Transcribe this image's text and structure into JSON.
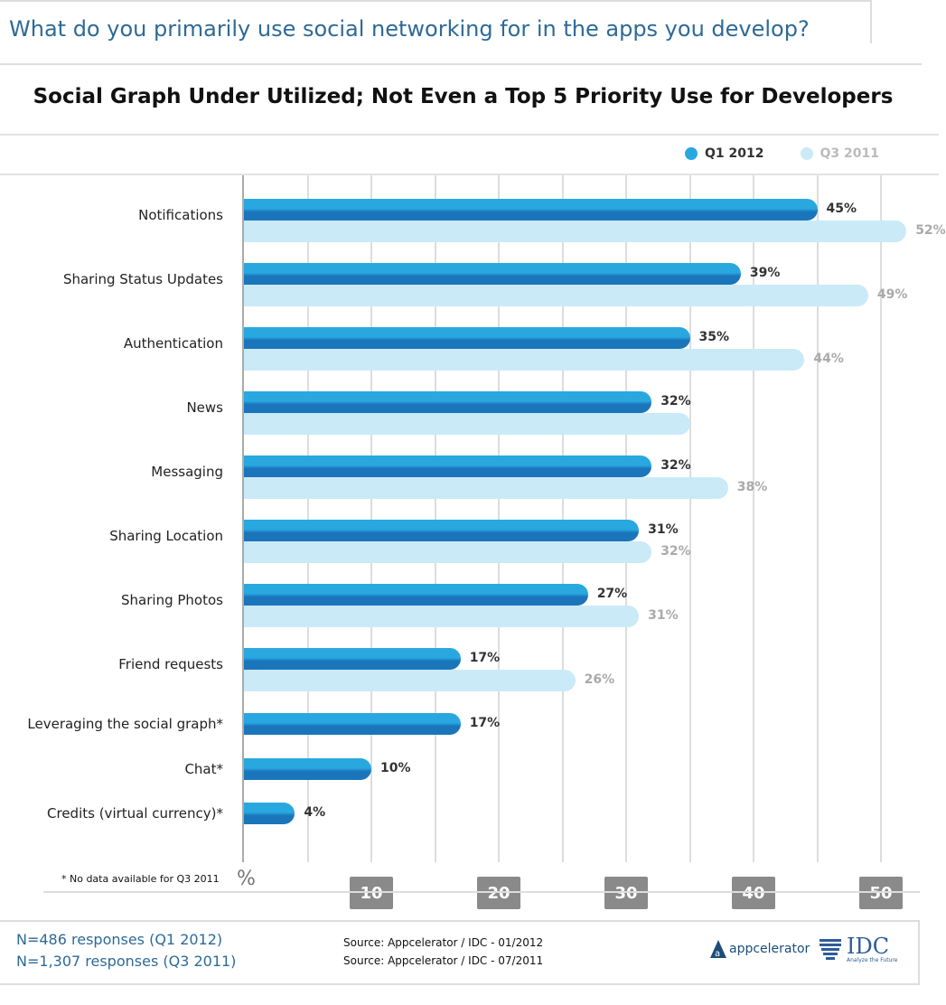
{
  "header": {
    "question": "What do you primarily use social networking for in the apps you develop?"
  },
  "chart_data": {
    "type": "bar",
    "orientation": "horizontal",
    "title": "Social Graph Under Utilized; Not Even a Top 5 Priority Use for Developers",
    "categories": [
      "Notifications",
      "Sharing Status Updates",
      "Authentication",
      "News",
      "Messaging",
      "Sharing Location",
      "Sharing Photos",
      "Friend requests",
      "Leveraging the social graph*",
      "Chat*",
      "Credits (virtual currency)*"
    ],
    "series": [
      {
        "name": "Q1 2012",
        "color": "#29a8e0",
        "values": [
          45,
          39,
          35,
          32,
          32,
          31,
          27,
          17,
          17,
          10,
          4
        ],
        "labels": [
          "45%",
          "39%",
          "35%",
          "32%",
          "32%",
          "31%",
          "27%",
          "17%",
          "17%",
          "10%",
          "4%"
        ]
      },
      {
        "name": "Q3 2011",
        "color": "#cbeaf7",
        "values": [
          52,
          49,
          44,
          35,
          38,
          32,
          31,
          26,
          null,
          null,
          null
        ],
        "labels": [
          "52%",
          "49%",
          "44%",
          "",
          "38%",
          "32%",
          "31%",
          "26%",
          null,
          null,
          null
        ]
      }
    ],
    "xlim": [
      0,
      50
    ],
    "xticks": [
      "10",
      "20",
      "30",
      "40",
      "50"
    ],
    "xunit": "%",
    "grid": true,
    "legend_position": "top-right",
    "note": "* No data available for Q3 2011"
  },
  "footer": {
    "n1": "N=486 responses (Q1 2012)",
    "n2": "N=1,307 responses (Q3 2011)",
    "src1": "Source: Appcelerator / IDC - 01/2012",
    "src2": "Source: Appcelerator / IDC - 07/2011",
    "logo1": "appcelerator",
    "logo2": "IDC",
    "logo2_tagline": "Analyze the Future"
  }
}
